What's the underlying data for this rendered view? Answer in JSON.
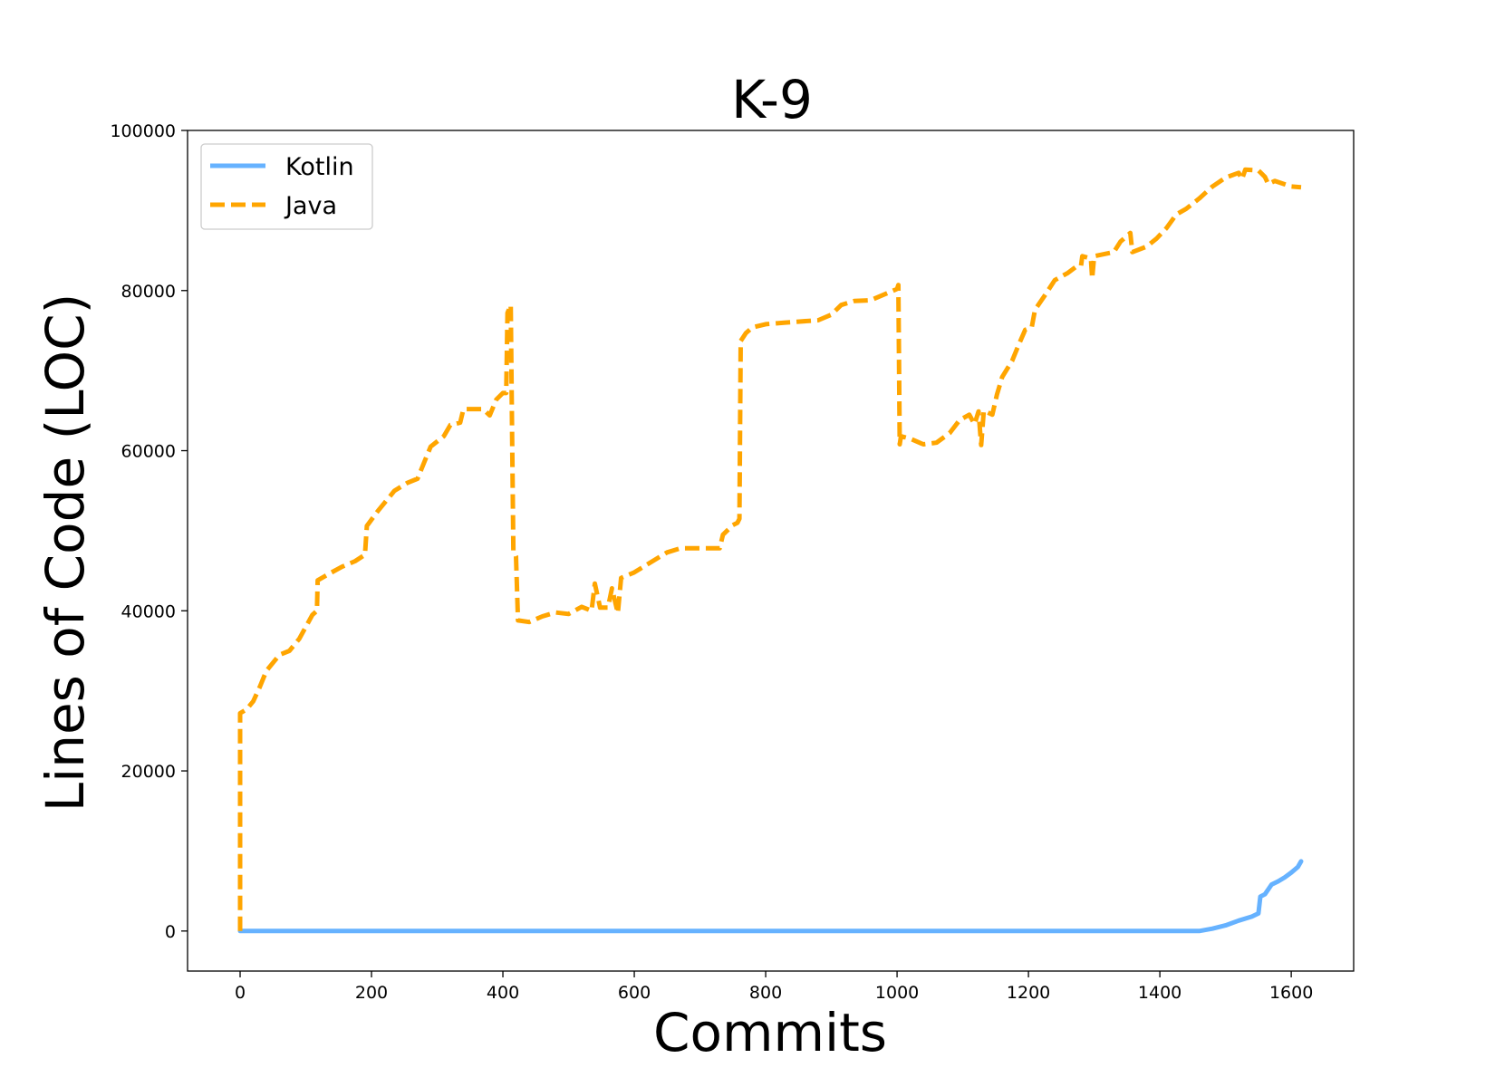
{
  "chart_data": {
    "type": "line",
    "title": "K-9",
    "xlabel": "Commits",
    "ylabel": "Lines of Code (LOC)",
    "xlim": [
      -80,
      1695
    ],
    "ylim": [
      -5000,
      100000
    ],
    "xticks": [
      0,
      200,
      400,
      600,
      800,
      1000,
      1200,
      1400,
      1600
    ],
    "xtick_labels": [
      "0",
      "200",
      "400",
      "600",
      "800",
      "1000",
      "1200",
      "1400",
      "1600"
    ],
    "yticks": [
      0,
      20000,
      40000,
      60000,
      80000,
      100000
    ],
    "ytick_labels": [
      "0",
      "20000",
      "40000",
      "60000",
      "80000",
      "100000"
    ],
    "grid": false,
    "legend": {
      "position": "top-left"
    },
    "series": [
      {
        "name": "Kotlin",
        "color": "#66b2ff",
        "style": "solid",
        "points": [
          [
            0,
            0
          ],
          [
            1460,
            0
          ],
          [
            1480,
            300
          ],
          [
            1500,
            700
          ],
          [
            1520,
            1300
          ],
          [
            1540,
            1800
          ],
          [
            1550,
            2200
          ],
          [
            1553,
            4300
          ],
          [
            1560,
            4600
          ],
          [
            1570,
            5800
          ],
          [
            1580,
            6200
          ],
          [
            1590,
            6700
          ],
          [
            1600,
            7300
          ],
          [
            1610,
            8000
          ],
          [
            1615,
            8700
          ]
        ]
      },
      {
        "name": "Java",
        "color": "#ffa500",
        "style": "dashed",
        "points": [
          [
            0,
            0
          ],
          [
            0,
            27200
          ],
          [
            10,
            27700
          ],
          [
            20,
            28700
          ],
          [
            30,
            30500
          ],
          [
            40,
            32500
          ],
          [
            60,
            34500
          ],
          [
            75,
            35000
          ],
          [
            90,
            36500
          ],
          [
            110,
            39500
          ],
          [
            117,
            40000
          ],
          [
            118,
            43800
          ],
          [
            135,
            44600
          ],
          [
            155,
            45500
          ],
          [
            175,
            46200
          ],
          [
            190,
            47000
          ],
          [
            193,
            50600
          ],
          [
            210,
            52500
          ],
          [
            235,
            55000
          ],
          [
            255,
            56000
          ],
          [
            270,
            56500
          ],
          [
            280,
            58500
          ],
          [
            290,
            60500
          ],
          [
            310,
            61800
          ],
          [
            320,
            63200
          ],
          [
            335,
            63500
          ],
          [
            340,
            65200
          ],
          [
            370,
            65200
          ],
          [
            380,
            64400
          ],
          [
            390,
            66400
          ],
          [
            400,
            67200
          ],
          [
            405,
            67200
          ],
          [
            407,
            77200
          ],
          [
            412,
            78200
          ],
          [
            414,
            62000
          ],
          [
            416,
            47500
          ],
          [
            420,
            46800
          ],
          [
            423,
            38800
          ],
          [
            440,
            38600
          ],
          [
            460,
            39300
          ],
          [
            480,
            39800
          ],
          [
            500,
            39600
          ],
          [
            520,
            40500
          ],
          [
            535,
            40000
          ],
          [
            540,
            43400
          ],
          [
            548,
            40400
          ],
          [
            560,
            40400
          ],
          [
            566,
            42800
          ],
          [
            575,
            39700
          ],
          [
            580,
            44100
          ],
          [
            600,
            44800
          ],
          [
            620,
            45800
          ],
          [
            650,
            47300
          ],
          [
            670,
            47800
          ],
          [
            700,
            47800
          ],
          [
            730,
            47800
          ],
          [
            735,
            49500
          ],
          [
            750,
            50700
          ],
          [
            757,
            51000
          ],
          [
            760,
            51500
          ],
          [
            762,
            73700
          ],
          [
            770,
            74700
          ],
          [
            780,
            75400
          ],
          [
            800,
            75800
          ],
          [
            830,
            76000
          ],
          [
            880,
            76300
          ],
          [
            900,
            77000
          ],
          [
            915,
            78200
          ],
          [
            935,
            78700
          ],
          [
            960,
            78800
          ],
          [
            980,
            79500
          ],
          [
            1000,
            80200
          ],
          [
            1002,
            80700
          ],
          [
            1004,
            60800
          ],
          [
            1006,
            61800
          ],
          [
            1020,
            61500
          ],
          [
            1040,
            60800
          ],
          [
            1060,
            61000
          ],
          [
            1080,
            62200
          ],
          [
            1095,
            63800
          ],
          [
            1110,
            64500
          ],
          [
            1118,
            63300
          ],
          [
            1124,
            64900
          ],
          [
            1128,
            60700
          ],
          [
            1132,
            65000
          ],
          [
            1145,
            64500
          ],
          [
            1152,
            67000
          ],
          [
            1160,
            69200
          ],
          [
            1175,
            71200
          ],
          [
            1185,
            73200
          ],
          [
            1195,
            75100
          ],
          [
            1205,
            75400
          ],
          [
            1210,
            77600
          ],
          [
            1225,
            79400
          ],
          [
            1240,
            81300
          ],
          [
            1260,
            82200
          ],
          [
            1273,
            83000
          ],
          [
            1280,
            83100
          ],
          [
            1282,
            84300
          ],
          [
            1295,
            84000
          ],
          [
            1297,
            81500
          ],
          [
            1300,
            84300
          ],
          [
            1330,
            84800
          ],
          [
            1340,
            86100
          ],
          [
            1355,
            87200
          ],
          [
            1358,
            84800
          ],
          [
            1380,
            85500
          ],
          [
            1395,
            86500
          ],
          [
            1410,
            87800
          ],
          [
            1425,
            89500
          ],
          [
            1440,
            90200
          ],
          [
            1460,
            91500
          ],
          [
            1480,
            93000
          ],
          [
            1500,
            94100
          ],
          [
            1520,
            94700
          ],
          [
            1525,
            93900
          ],
          [
            1530,
            95100
          ],
          [
            1550,
            95000
          ],
          [
            1560,
            94200
          ],
          [
            1565,
            93300
          ],
          [
            1575,
            93700
          ],
          [
            1600,
            93000
          ],
          [
            1615,
            92900
          ]
        ]
      }
    ]
  }
}
